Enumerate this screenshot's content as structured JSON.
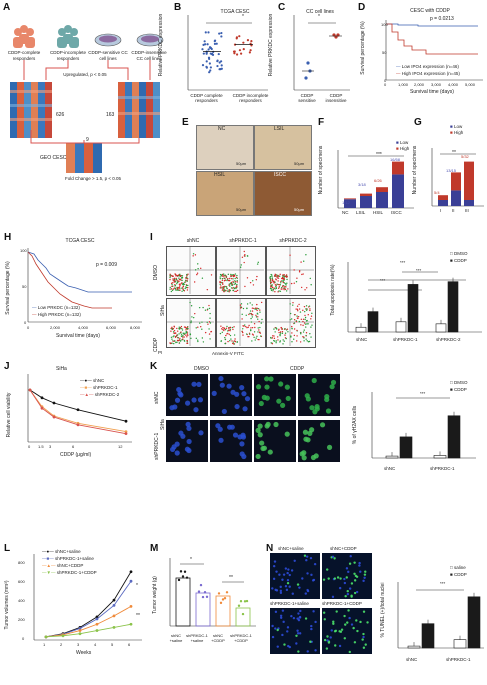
{
  "panels": {
    "A": {
      "letter": "A",
      "groups": [
        "CDDP-complete responders",
        "CDDP-incomplete responders",
        "CDDP-sensitive CC cell lines",
        "CDDP-insensitive CC cell lines"
      ],
      "upregulated": "Upregulated, p < 0.05",
      "counts": [
        "626",
        "163",
        "9"
      ],
      "geo": "GEO CESC",
      "fold": "Fold Change > 1.5, p < 0.05"
    },
    "B": {
      "letter": "B",
      "title": "TCGA CESC",
      "ylabel": "Relative PRKDC expression",
      "sig": "*",
      "xcats": [
        "CDDP complete responders",
        "CDDP incomplete responders"
      ]
    },
    "C": {
      "letter": "C",
      "title": "CC cell lines",
      "ylabel": "Relative PRKDC expression",
      "sig": "*",
      "xcats": [
        "CDDP sensitive",
        "CDDP insensitive"
      ]
    },
    "D": {
      "letter": "D",
      "title": "CESC with CDDP",
      "pval": "p = 0.0213",
      "ylabel": "Survival percentage (%)",
      "xlabel": "Survival time (days)",
      "legend": [
        "Low IPO4 expression (n=46)",
        "High IPO4 expression (n=45)"
      ],
      "xticks": [
        "0",
        "1,000",
        "2,000",
        "3,000",
        "4,000",
        "5,000"
      ],
      "yticks": [
        "0",
        "50",
        "100"
      ]
    },
    "E": {
      "letter": "E",
      "tissues": [
        "NC",
        "LSIL",
        "HSIL",
        "ISCC"
      ],
      "scale": "50μm"
    },
    "F": {
      "letter": "F",
      "ylabel": "Number of specimens",
      "legend": [
        "Low",
        "High"
      ],
      "sig": "***",
      "cats": [
        "NC",
        "LSIL",
        "HSIL",
        "ISCC"
      ],
      "labels": [
        "1/12",
        "3/18",
        "6/26",
        "16/58"
      ]
    },
    "G": {
      "letter": "G",
      "ylabel": "Number of specimens",
      "legend": [
        "Low",
        "High"
      ],
      "sig": "**",
      "cats": [
        "I",
        "II",
        "III"
      ],
      "labels": [
        "5/4",
        "13/15",
        "5/32"
      ]
    },
    "H": {
      "letter": "H",
      "title": "TCGA CESC",
      "pval": "p = 0.009",
      "ylabel": "Survival percentage (%)",
      "xlabel": "Survival time (days)",
      "legend": [
        "Low PRKDC (n=132)",
        "High PRKDC (n=132)"
      ],
      "xticks": [
        "0",
        "2,000",
        "4,000",
        "6,000",
        "8,000"
      ],
      "yticks": [
        "0",
        "50",
        "100"
      ]
    },
    "I": {
      "letter": "I",
      "cols": [
        "shNC",
        "shPRKDC-1",
        "shPRKDC-2"
      ],
      "rows": [
        "DMSO",
        "CDDP"
      ],
      "cell": "SiHa",
      "xaxis": "Annexin-V FITC",
      "yaxis": "PI",
      "ylabel": "Total apoptosis rate(%)",
      "legend": [
        "DMSO",
        "CDDP"
      ],
      "sig": [
        "***",
        "***",
        "***"
      ],
      "cats": [
        "shNC",
        "shPRKDC-1",
        "shPRKDC-2"
      ]
    },
    "J": {
      "letter": "J",
      "title": "SiHa",
      "ylabel": "Relative cell viability",
      "xlabel": "CDDP (μg/ml)",
      "legend": [
        "shNC",
        "shPRKDC-1",
        "shPRKDC-2"
      ],
      "xticks": [
        "0",
        "1.5",
        "3",
        "6",
        "12"
      ]
    },
    "K": {
      "letter": "K",
      "cols": [
        "DMSO",
        "CDDP"
      ],
      "rows": [
        "shNC",
        "shPRKDC-1"
      ],
      "cell": "SiHa",
      "ylabel": "% of γH2AX cells",
      "legend": [
        "DMSO",
        "CDDP"
      ],
      "cats": [
        "shNC",
        "shPRKDC-1"
      ],
      "sig": "***"
    },
    "L": {
      "letter": "L",
      "ylabel": "Tumor volumes (mm³)",
      "xlabel": "Weeks",
      "legend": [
        "shNC+saline",
        "shPRKDC-1+saline",
        "shNC+CDDP",
        "shPRKDC-1+CDDP"
      ],
      "xticks": [
        "1",
        "2",
        "3",
        "4",
        "5",
        "6"
      ],
      "yticks": [
        "0",
        "200",
        "400",
        "600",
        "800"
      ],
      "sig": [
        "*",
        "**"
      ]
    },
    "M": {
      "letter": "M",
      "ylabel": "Tumor weight (g)",
      "cats": [
        "shNC +saline",
        "shPRKDC-1 +saline",
        "shNC +CDDP",
        "shPRKDC-1 +CDDP"
      ],
      "sig": [
        "*",
        "**"
      ]
    },
    "N": {
      "letter": "N",
      "labels": [
        "shNC+saline",
        "shNC+CDDP",
        "shPRKDC-1+saline",
        "shPRKDC-1+CDDP"
      ],
      "ylabel": "% TUNEL (+)/total nuclei",
      "legend": [
        "saline",
        "CDDP"
      ],
      "cats": [
        "shNC",
        "shPRKDC-1"
      ],
      "sig": "***"
    }
  },
  "chart_data": [
    {
      "type": "scatter",
      "panel": "B",
      "series": [
        {
          "name": "CDDP complete responders",
          "mean": 5.5
        },
        {
          "name": "CDDP incomplete responders",
          "mean": 6.5
        }
      ]
    },
    {
      "type": "scatter",
      "panel": "C",
      "series": [
        {
          "name": "CDDP sensitive",
          "mean": 1.0
        },
        {
          "name": "CDDP insensitive",
          "mean": 3.0
        }
      ]
    },
    {
      "type": "bar",
      "panel": "F",
      "categories": [
        "NC",
        "LSIL",
        "HSIL",
        "ISCC"
      ],
      "series": [
        {
          "name": "Low",
          "values": [
            11,
            15,
            20,
            42
          ]
        },
        {
          "name": "High",
          "values": [
            1,
            3,
            6,
            16
          ]
        }
      ]
    },
    {
      "type": "bar",
      "panel": "G",
      "categories": [
        "I",
        "II",
        "III"
      ],
      "series": [
        {
          "name": "Low",
          "values": [
            5,
            13,
            5
          ]
        },
        {
          "name": "High",
          "values": [
            4,
            15,
            32
          ]
        }
      ]
    },
    {
      "type": "bar",
      "panel": "I",
      "categories": [
        "shNC",
        "shPRKDC-1",
        "shPRKDC-2"
      ],
      "series": [
        {
          "name": "DMSO",
          "values": [
            7,
            15,
            12
          ]
        },
        {
          "name": "CDDP",
          "values": [
            30,
            70,
            74
          ]
        }
      ],
      "ylim": [
        0,
        100
      ]
    },
    {
      "type": "line",
      "panel": "J",
      "x": [
        0,
        1.5,
        3,
        6,
        12
      ],
      "series": [
        {
          "name": "shNC",
          "values": [
            1.0,
            0.85,
            0.75,
            0.62,
            0.4
          ]
        },
        {
          "name": "shPRKDC-1",
          "values": [
            1.0,
            0.68,
            0.5,
            0.36,
            0.2
          ]
        },
        {
          "name": "shPRKDC-2",
          "values": [
            1.0,
            0.65,
            0.48,
            0.33,
            0.16
          ]
        }
      ],
      "ylim": [
        0,
        1.2
      ]
    },
    {
      "type": "bar",
      "panel": "K",
      "categories": [
        "shNC",
        "shPRKDC-1"
      ],
      "series": [
        {
          "name": "DMSO",
          "values": [
            3,
            4
          ]
        },
        {
          "name": "CDDP",
          "values": [
            33,
            66
          ]
        }
      ],
      "ylim": [
        0,
        100
      ]
    },
    {
      "type": "line",
      "panel": "L",
      "x": [
        1,
        2,
        3,
        4,
        5,
        6
      ],
      "series": [
        {
          "name": "shNC+saline",
          "values": [
            30,
            60,
            120,
            220,
            380,
            650
          ]
        },
        {
          "name": "shPRKDC-1+saline",
          "values": [
            30,
            55,
            110,
            200,
            330,
            560
          ]
        },
        {
          "name": "shNC+CDDP",
          "values": [
            30,
            50,
            90,
            150,
            230,
            320
          ]
        },
        {
          "name": "shPRKDC-1+CDDP",
          "values": [
            30,
            40,
            60,
            90,
            120,
            150
          ]
        }
      ],
      "ylim": [
        0,
        800
      ]
    },
    {
      "type": "scatter",
      "panel": "M",
      "categories": [
        "shNC +saline",
        "shPRKDC-1 +saline",
        "shNC +CDDP",
        "shPRKDC-1 +CDDP"
      ],
      "series": [
        {
          "name": "Tumor weight",
          "values": [
            0.8,
            0.55,
            0.5,
            0.3
          ]
        }
      ],
      "ylim": [
        0,
        1.0
      ]
    },
    {
      "type": "bar",
      "panel": "N",
      "categories": [
        "shNC",
        "shPRKDC-1"
      ],
      "series": [
        {
          "name": "saline",
          "values": [
            3,
            13
          ]
        },
        {
          "name": "CDDP",
          "values": [
            38,
            80
          ]
        }
      ],
      "ylim": [
        0,
        100
      ]
    }
  ]
}
